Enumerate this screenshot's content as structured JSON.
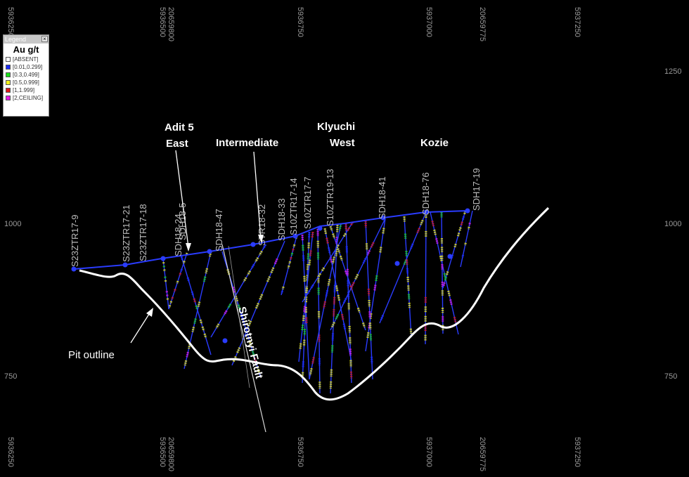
{
  "legend": {
    "window_title": "Legend",
    "close_glyph": "×",
    "heading": "Au g/t",
    "items": [
      {
        "label": "[ABSENT]",
        "color": "#ffffff"
      },
      {
        "label": "[0.01,0.299]",
        "color": "#1a2cff"
      },
      {
        "label": "[0.3,0.499]",
        "color": "#19e019"
      },
      {
        "label": "[0.5,0.999]",
        "color": "#f2f21a"
      },
      {
        "label": "[1,1.999]",
        "color": "#e01818"
      },
      {
        "label": "[2,CEILING]",
        "color": "#e619e6"
      }
    ]
  },
  "axes": {
    "top_ticks": [
      "5936250",
      "5936500",
      "20659800",
      "5936750",
      "5937000",
      "20659775",
      "5937250"
    ],
    "bottom_ticks": [
      "5936250",
      "5936500",
      "20659800",
      "5936750",
      "5937000",
      "20659775",
      "5937250"
    ],
    "left_ticks": [
      "1000",
      "750"
    ],
    "right_ticks": [
      "1250",
      "1000",
      "750"
    ]
  },
  "drillholes": [
    "S23ZTR17-9",
    "S23ZTR17-21",
    "S23ZTR17-18",
    "SDH18-24",
    "SDH18-5",
    "SDH18-47",
    "STR18-32",
    "SDH18-33",
    "S10ZTR17-14",
    "S10ZTR17-7",
    "S10ZTR19-13",
    "SDH18-41",
    "SDH18-76",
    "SDH17-19"
  ],
  "annotations": {
    "adit5_line1": "Adit 5",
    "adit5_line2": "East",
    "intermediate": "Intermediate",
    "klyuchi": "Klyuchi",
    "west": "West",
    "kozie": "Kozie",
    "pit_outline": "Pit outline",
    "fault": "Shirotnyi Fault"
  },
  "colors": {
    "background": "#000000",
    "pit_outline": "#ffffff",
    "collar": "#2a3cff"
  }
}
